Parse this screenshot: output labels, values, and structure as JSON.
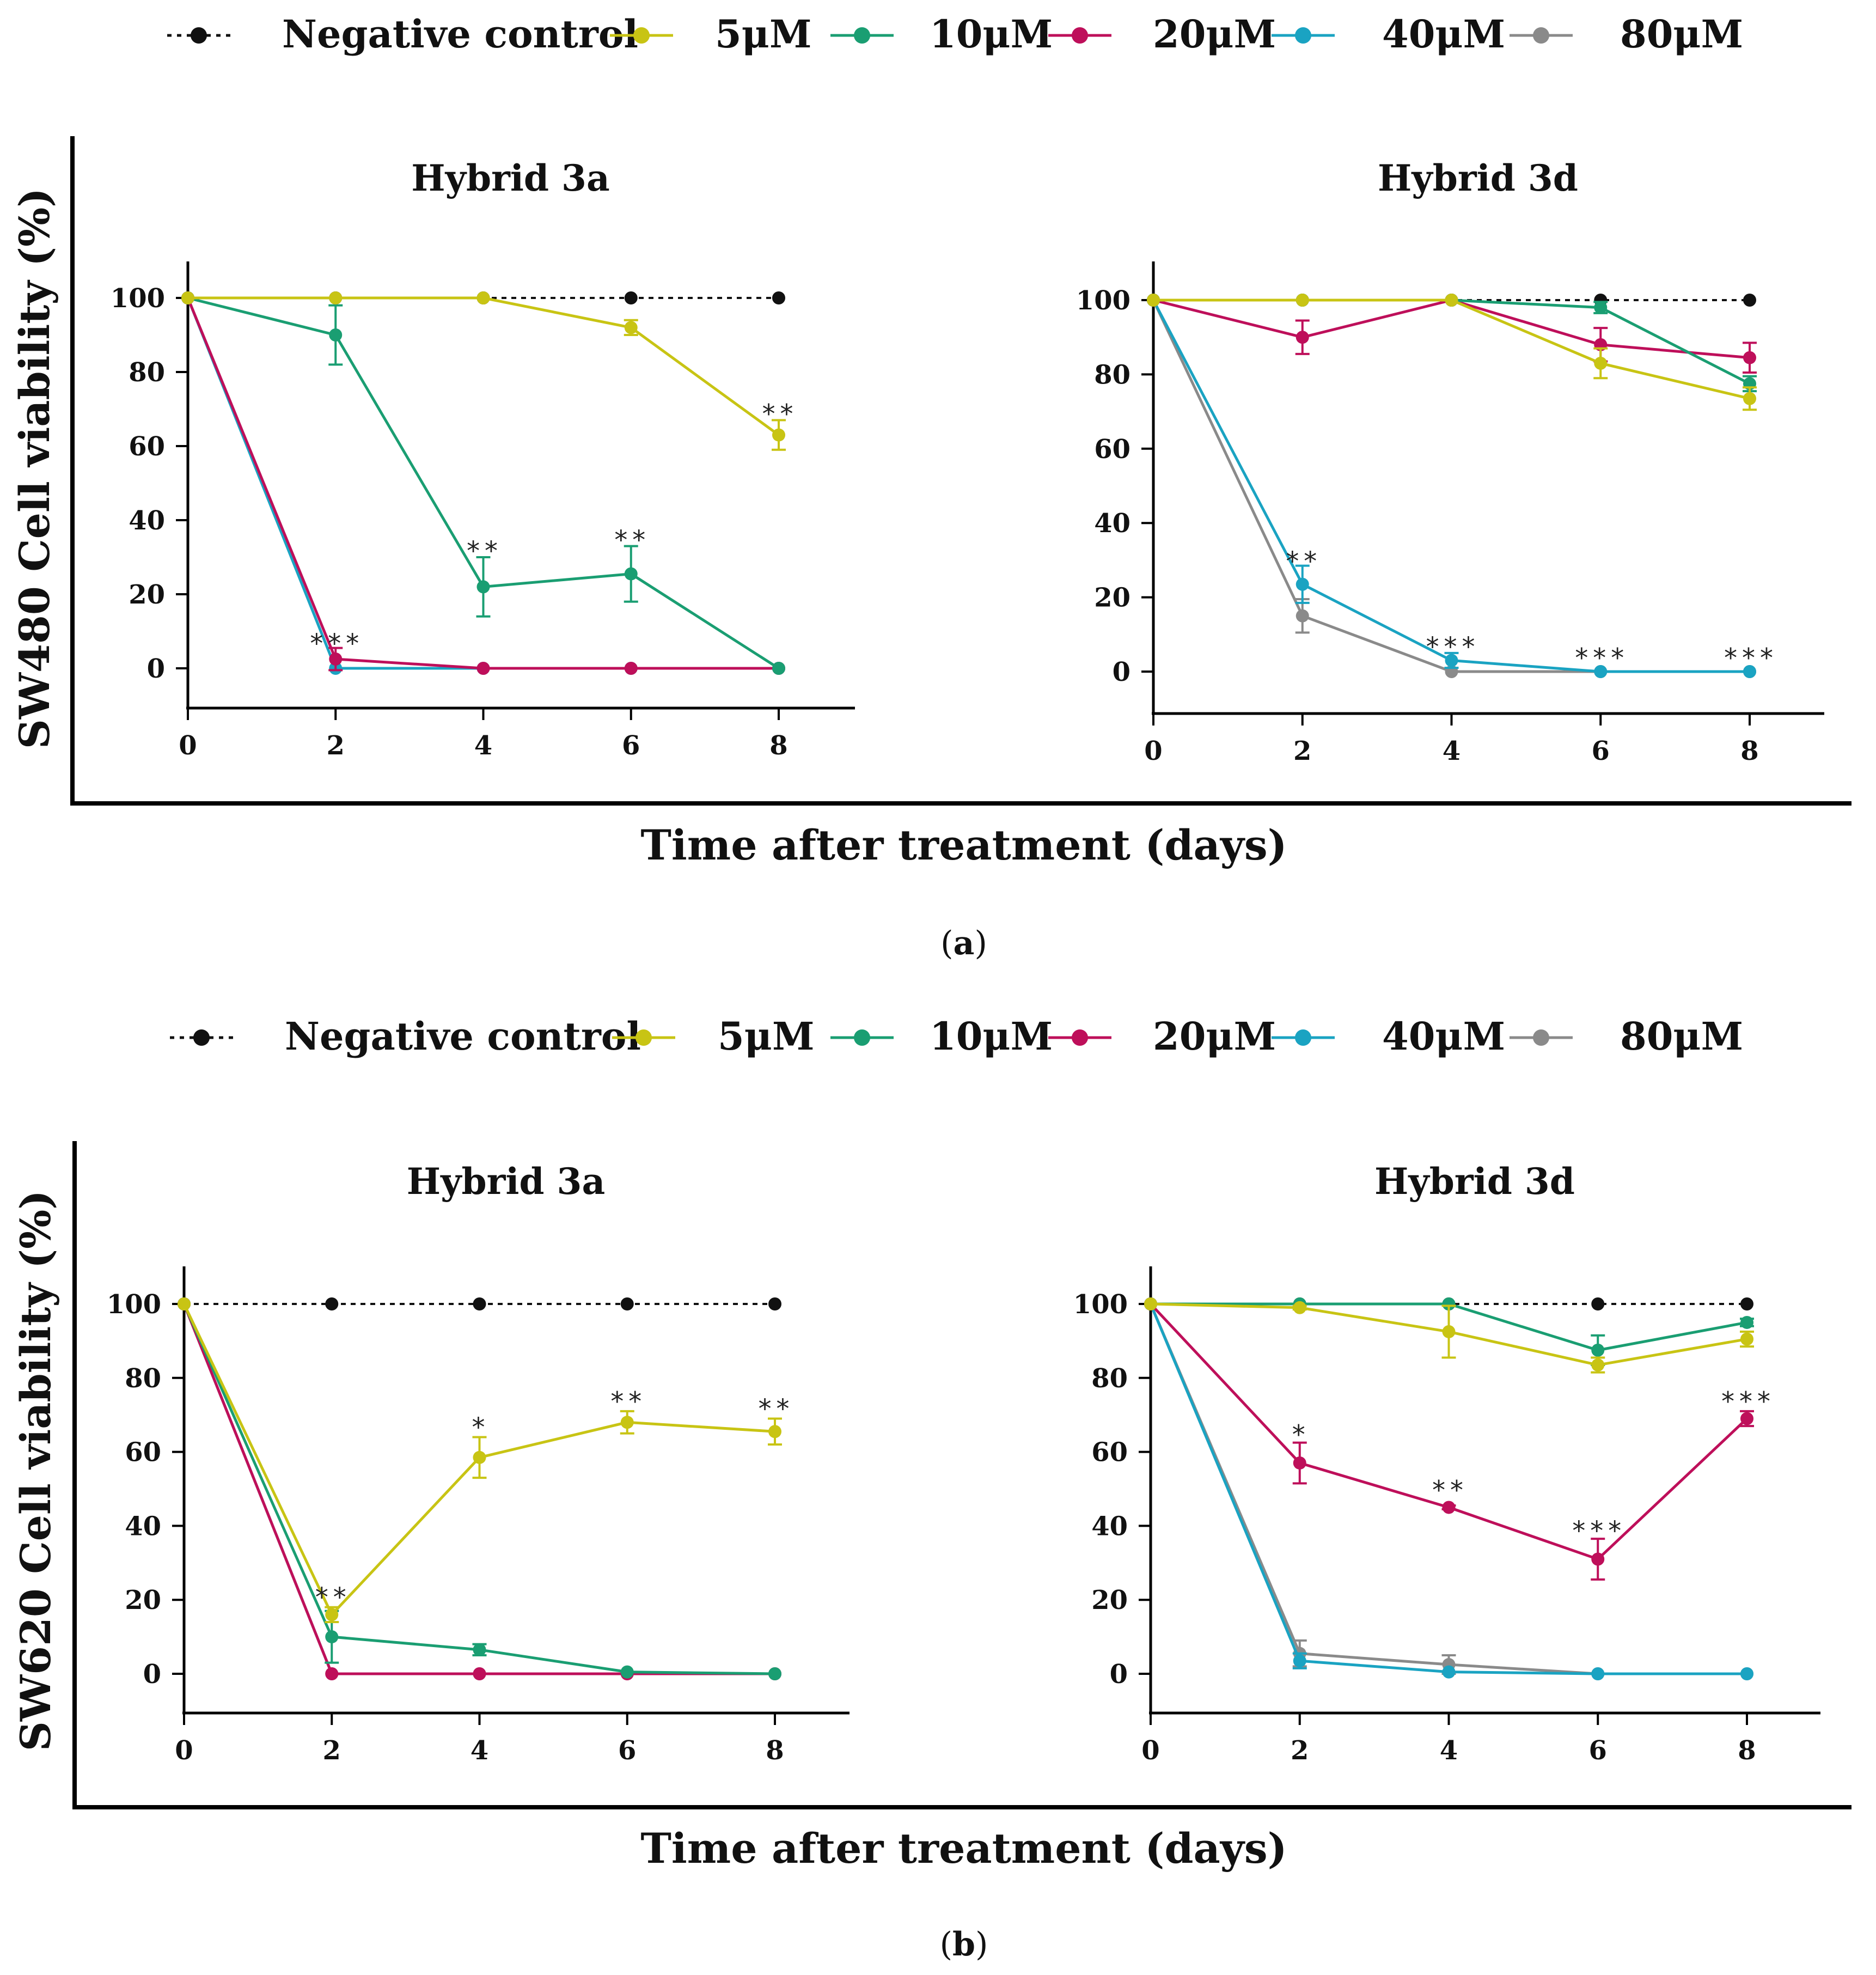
{
  "colors": {
    "neg": "#111111",
    "c5": "#c8c414",
    "c10": "#1a9e72",
    "c20": "#be0f5a",
    "c40": "#1aa3c2",
    "c80": "#8a8a8a"
  },
  "legend": [
    {
      "key": "neg",
      "label": "Negative control"
    },
    {
      "key": "c5",
      "label": "5μM"
    },
    {
      "key": "c10",
      "label": "10μM"
    },
    {
      "key": "c20",
      "label": "20μM"
    },
    {
      "key": "c40",
      "label": "40μM"
    },
    {
      "key": "c80",
      "label": "80μM"
    }
  ],
  "panels": [
    {
      "id": "a",
      "caption_open": "(",
      "caption_letter": "a",
      "caption_close": ")",
      "ylabel": "SW480 Cell viability (%)",
      "xlabel": "Time after treatment (days)"
    },
    {
      "id": "b",
      "caption_open": "(",
      "caption_letter": "b",
      "caption_close": ")",
      "ylabel": "SW620 Cell viability (%)",
      "xlabel": "Time after treatment (days)"
    }
  ],
  "chart_data": [
    {
      "type": "line",
      "panel": "a",
      "title": "Hybrid 3a",
      "xlabel": "Time after treatment (days)",
      "ylabel": "SW480 Cell viability (%)",
      "x": [
        0,
        2,
        4,
        6,
        8
      ],
      "xticks": [
        "0",
        "2",
        "4",
        "6",
        "8"
      ],
      "yticks": [
        "0",
        "20",
        "40",
        "60",
        "80",
        "100"
      ],
      "ylim": [
        -10,
        110
      ],
      "series": [
        {
          "key": "neg",
          "name": "Negative control",
          "values": [
            100,
            100,
            100,
            100,
            100
          ],
          "err": [
            0,
            0,
            0,
            0,
            0
          ],
          "dashed": true
        },
        {
          "key": "c5",
          "name": "5μM",
          "values": [
            100,
            100,
            100,
            92,
            63
          ],
          "err": [
            0,
            0,
            0,
            2,
            4
          ]
        },
        {
          "key": "c10",
          "name": "10μM",
          "values": [
            100,
            90,
            22,
            25.5,
            0
          ],
          "err": [
            0,
            8,
            8,
            7.5,
            0
          ]
        },
        {
          "key": "c20",
          "name": "20μM",
          "values": [
            100,
            2.5,
            0,
            0,
            0
          ],
          "err": [
            0,
            3,
            0,
            0,
            0
          ]
        },
        {
          "key": "c40",
          "name": "40μM",
          "values": [
            100,
            0,
            0,
            0,
            0
          ],
          "err": [
            0,
            0,
            0,
            0,
            0
          ]
        }
      ],
      "annotations": [
        {
          "x": 2,
          "y": 6,
          "text": "***"
        },
        {
          "x": 4,
          "y": 31,
          "text": "**"
        },
        {
          "x": 6,
          "y": 34,
          "text": "**"
        },
        {
          "x": 8,
          "y": 68,
          "text": "**"
        }
      ]
    },
    {
      "type": "line",
      "panel": "a",
      "title": "Hybrid 3d",
      "xlabel": "Time after treatment (days)",
      "ylabel": "SW480 Cell viability (%)",
      "x": [
        0,
        2,
        4,
        6,
        8
      ],
      "xticks": [
        "0",
        "2",
        "4",
        "6",
        "8"
      ],
      "yticks": [
        "0",
        "20",
        "40",
        "60",
        "80",
        "100"
      ],
      "ylim": [
        -10,
        110
      ],
      "series": [
        {
          "key": "neg",
          "name": "Negative control",
          "values": [
            100,
            100,
            100,
            100,
            100
          ],
          "err": [
            0,
            0,
            0,
            0,
            0
          ],
          "dashed": true
        },
        {
          "key": "c5",
          "name": "5μM",
          "values": [
            100,
            100,
            100,
            83,
            73.5
          ],
          "err": [
            0,
            0,
            0,
            4,
            3
          ]
        },
        {
          "key": "c10",
          "name": "10μM",
          "values": [
            100,
            100,
            100,
            98,
            77.5
          ],
          "err": [
            0,
            0,
            0,
            1.5,
            2
          ]
        },
        {
          "key": "c20",
          "name": "20μM",
          "values": [
            100,
            90,
            100,
            88,
            84.5
          ],
          "err": [
            0,
            4.5,
            0,
            4.5,
            4
          ]
        },
        {
          "key": "c40",
          "name": "40μM",
          "values": [
            100,
            23.5,
            3,
            0,
            0
          ],
          "err": [
            0,
            5,
            2,
            0,
            0
          ]
        },
        {
          "key": "c80",
          "name": "80μM",
          "values": [
            100,
            15,
            0,
            0,
            0
          ],
          "err": [
            0,
            4.5,
            0,
            0,
            0
          ]
        }
      ],
      "annotations": [
        {
          "x": 2,
          "y": 29,
          "text": "**"
        },
        {
          "x": 4,
          "y": 6,
          "text": "***"
        },
        {
          "x": 6,
          "y": 3,
          "text": "***"
        },
        {
          "x": 8,
          "y": 3,
          "text": "***"
        }
      ]
    },
    {
      "type": "line",
      "panel": "b",
      "title": "Hybrid 3a",
      "xlabel": "Time after treatment (days)",
      "ylabel": "SW620 Cell viability (%)",
      "x": [
        0,
        2,
        4,
        6,
        8
      ],
      "xticks": [
        "0",
        "2",
        "4",
        "6",
        "8"
      ],
      "yticks": [
        "0",
        "20",
        "40",
        "60",
        "80",
        "100"
      ],
      "ylim": [
        -10,
        110
      ],
      "series": [
        {
          "key": "neg",
          "name": "Negative control",
          "values": [
            100,
            100,
            100,
            100,
            100
          ],
          "err": [
            0,
            0,
            0,
            0,
            0
          ],
          "dashed": true
        },
        {
          "key": "c5",
          "name": "5μM",
          "values": [
            100,
            16,
            58.5,
            68,
            65.5
          ],
          "err": [
            0,
            2,
            5.5,
            3,
            3.5
          ]
        },
        {
          "key": "c10",
          "name": "10μM",
          "values": [
            100,
            10,
            6.5,
            0.5,
            0
          ],
          "err": [
            0,
            7,
            1.5,
            0,
            0
          ]
        },
        {
          "key": "c20",
          "name": "20μM",
          "values": [
            100,
            0,
            0,
            0,
            0
          ],
          "err": [
            0,
            0,
            0,
            0,
            0
          ]
        },
        {
          "key": "c80",
          "name": "80μM",
          "values": [
            100,
            0,
            0,
            0,
            0
          ],
          "err": [
            0,
            0,
            0,
            0,
            0
          ]
        }
      ],
      "annotations": [
        {
          "x": 2,
          "y": 20,
          "text": "**"
        },
        {
          "x": 4,
          "y": 66,
          "text": "*"
        },
        {
          "x": 6,
          "y": 73,
          "text": "**"
        },
        {
          "x": 8,
          "y": 71,
          "text": "**"
        }
      ]
    },
    {
      "type": "line",
      "panel": "b",
      "title": "Hybrid 3d",
      "xlabel": "Time after treatment (days)",
      "ylabel": "SW620 Cell viability (%)",
      "x": [
        0,
        2,
        4,
        6,
        8
      ],
      "xticks": [
        "0",
        "2",
        "4",
        "6",
        "8"
      ],
      "yticks": [
        "0",
        "20",
        "40",
        "60",
        "80",
        "100"
      ],
      "ylim": [
        -10,
        110
      ],
      "series": [
        {
          "key": "neg",
          "name": "Negative control",
          "values": [
            100,
            100,
            100,
            100,
            100
          ],
          "err": [
            0,
            0,
            0,
            0,
            0
          ],
          "dashed": true
        },
        {
          "key": "c5",
          "name": "5μM",
          "values": [
            100,
            99,
            92.5,
            83.5,
            90.5
          ],
          "err": [
            0,
            0.5,
            7,
            2,
            2
          ]
        },
        {
          "key": "c10",
          "name": "10μM",
          "values": [
            100,
            100,
            100,
            87.5,
            95
          ],
          "err": [
            0,
            0,
            0,
            4,
            1
          ]
        },
        {
          "key": "c20",
          "name": "20μM",
          "values": [
            100,
            57,
            45,
            31,
            69
          ],
          "err": [
            0,
            5.5,
            0.5,
            5.5,
            2
          ]
        },
        {
          "key": "c40",
          "name": "40μM",
          "values": [
            100,
            3.5,
            0.5,
            0,
            0
          ],
          "err": [
            0,
            2,
            0,
            0,
            0
          ]
        },
        {
          "key": "c80",
          "name": "80μM",
          "values": [
            100,
            5.5,
            2.5,
            0,
            0
          ],
          "err": [
            0,
            3.5,
            2.5,
            0,
            0
          ]
        }
      ],
      "annotations": [
        {
          "x": 2,
          "y": 64,
          "text": "*"
        },
        {
          "x": 4,
          "y": 49,
          "text": "**"
        },
        {
          "x": 6,
          "y": 38,
          "text": "***"
        },
        {
          "x": 8,
          "y": 73,
          "text": "***"
        }
      ]
    }
  ]
}
